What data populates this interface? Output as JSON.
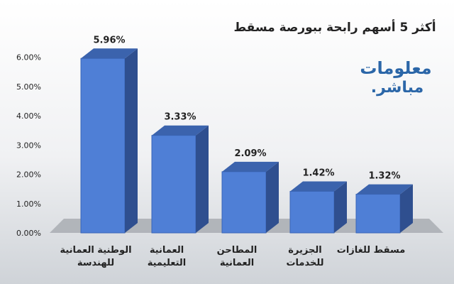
{
  "chart_data": {
    "type": "bar",
    "title": "أكثر 5 أسهم رابحة ببورصة مسقط",
    "categories": [
      [
        "الوطنية العمانية",
        "للهندسة"
      ],
      [
        "العمانية",
        "التعليمية"
      ],
      [
        "المطاحن",
        "العمانية"
      ],
      [
        "الجزيرة",
        "للخدمات"
      ],
      [
        "مسقط للغازات"
      ]
    ],
    "values": [
      5.96,
      3.33,
      2.09,
      1.42,
      1.32
    ],
    "data_labels": [
      "5.96%",
      "3.33%",
      "2.09%",
      "1.42%",
      "1.32%"
    ],
    "y_ticks": [
      "0.00%",
      "1.00%",
      "2.00%",
      "3.00%",
      "4.00%",
      "5.00%",
      "6.00%"
    ],
    "ylim": [
      0,
      6.5
    ],
    "xlabel": "",
    "ylabel": "",
    "bar_style": "3d",
    "grid": false,
    "colors": {
      "background_top": "#ffffff",
      "background_bottom": "#cfd3d8",
      "floor": "#a9adb3",
      "bar_front": "#4f7fd6",
      "bar_side": "#2f4f8f",
      "bar_top": "#3b63ad",
      "text": "#222222",
      "watermark_main": "#2b66a8",
      "watermark_accent": "#f39c2e"
    },
    "watermark": {
      "line1": "معلومات",
      "line2": "مباشر."
    }
  }
}
